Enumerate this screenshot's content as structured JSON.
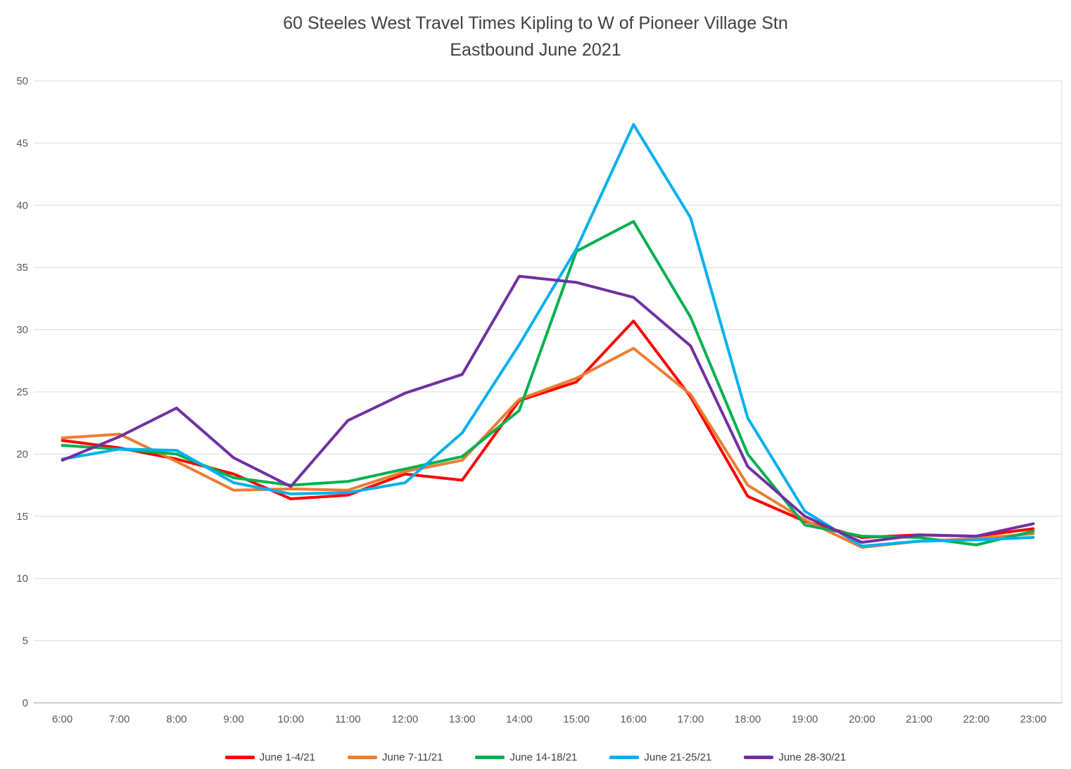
{
  "chart_data": {
    "type": "line",
    "title_line1": "60 Steeles West Travel Times Kipling to W of Pioneer Village Stn",
    "title_line2": "Eastbound  June 2021",
    "xlabel": "",
    "ylabel": "",
    "ylim": [
      0,
      50
    ],
    "yticks": [
      0,
      5,
      10,
      15,
      20,
      25,
      30,
      35,
      40,
      45,
      50
    ],
    "grid": "horizontal",
    "legend_position": "bottom",
    "gridline_color": "#D9D9D9",
    "axis_color": "#BFBFBF",
    "tick_color": "#595959",
    "title_color": "#404040",
    "categories": [
      "6:00",
      "7:00",
      "8:00",
      "9:00",
      "10:00",
      "11:00",
      "12:00",
      "13:00",
      "14:00",
      "15:00",
      "16:00",
      "17:00",
      "18:00",
      "19:00",
      "20:00",
      "21:00",
      "22:00",
      "23:00"
    ],
    "series": [
      {
        "name": "June 1-4/21",
        "color": "#FF0000",
        "values": [
          21.1,
          20.5,
          19.6,
          18.4,
          16.4,
          16.7,
          18.4,
          17.9,
          24.3,
          25.8,
          30.7,
          24.6,
          16.6,
          14.6,
          13.3,
          13.5,
          13.4,
          14.0
        ]
      },
      {
        "name": "June 7-11/21",
        "color": "#ED7D31",
        "values": [
          21.3,
          21.6,
          19.4,
          17.1,
          17.2,
          17.1,
          18.6,
          19.5,
          24.4,
          26.1,
          28.5,
          24.8,
          17.5,
          14.7,
          12.5,
          13.0,
          13.2,
          13.6
        ]
      },
      {
        "name": "June 14-18/21",
        "color": "#00B050",
        "values": [
          20.7,
          20.4,
          20.0,
          18.1,
          17.5,
          17.8,
          18.8,
          19.8,
          23.5,
          36.3,
          38.7,
          31.0,
          20.0,
          14.3,
          13.4,
          13.3,
          12.7,
          13.8
        ]
      },
      {
        "name": "June 21-25/21",
        "color": "#00B0F0",
        "values": [
          19.6,
          20.4,
          20.3,
          17.7,
          16.8,
          16.9,
          17.7,
          21.7,
          28.8,
          36.5,
          46.5,
          39.0,
          22.9,
          15.4,
          12.6,
          13.0,
          13.1,
          13.3
        ]
      },
      {
        "name": "June 28-30/21",
        "color": "#7030A0",
        "values": [
          19.5,
          21.4,
          23.7,
          19.7,
          17.4,
          22.7,
          24.9,
          26.4,
          34.3,
          33.8,
          32.6,
          28.7,
          19.0,
          15.0,
          12.9,
          13.5,
          13.4,
          14.4
        ]
      }
    ]
  }
}
